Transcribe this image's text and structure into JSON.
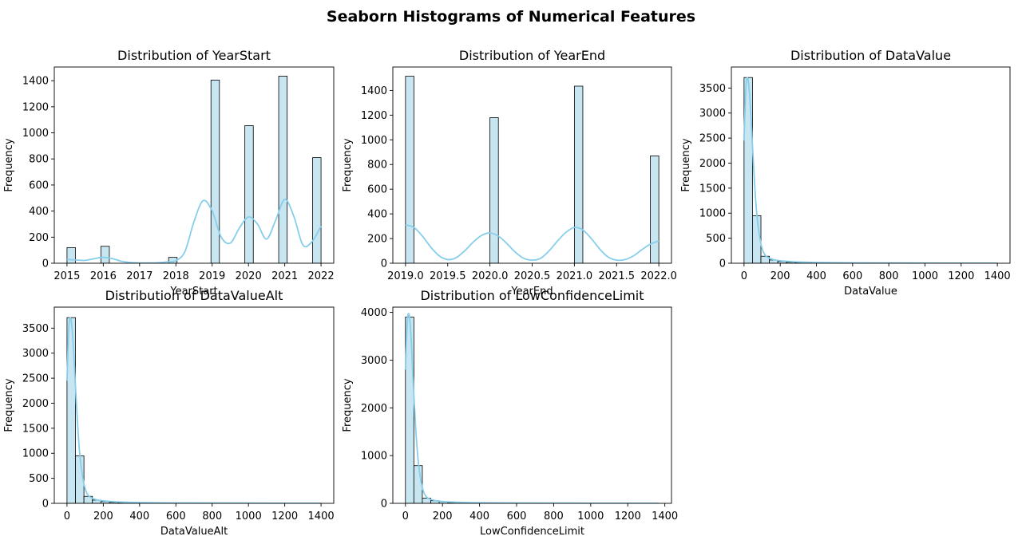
{
  "figure": {
    "title": "Seaborn Histograms of Numerical Features",
    "bar_fill": "#c7e6f1",
    "bar_edge": "#000000",
    "kde_color": "#87ceeb"
  },
  "chart_data": [
    {
      "type": "bar",
      "title": "Distribution of YearStart",
      "xlabel": "YearStart",
      "ylabel": "Frequency",
      "xlim": [
        2014.65,
        2022.35
      ],
      "ylim": [
        0,
        1505
      ],
      "xticks": [
        2015,
        2016,
        2017,
        2018,
        2019,
        2020,
        2021,
        2022
      ],
      "xtick_labels": [
        "2015",
        "2016",
        "2017",
        "2018",
        "2019",
        "2020",
        "2021",
        "2022"
      ],
      "yticks": [
        0,
        200,
        400,
        600,
        800,
        1000,
        1200,
        1400
      ],
      "ytick_labels": [
        "0",
        "200",
        "400",
        "600",
        "800",
        "1000",
        "1200",
        "1400"
      ],
      "bins": [
        {
          "x0": 2015.0,
          "x1": 2015.233,
          "v": 120
        },
        {
          "x0": 2015.933,
          "x1": 2016.167,
          "v": 130
        },
        {
          "x0": 2017.8,
          "x1": 2018.033,
          "v": 45
        },
        {
          "x0": 2018.967,
          "x1": 2019.2,
          "v": 1405
        },
        {
          "x0": 2019.9,
          "x1": 2020.133,
          "v": 1055
        },
        {
          "x0": 2020.833,
          "x1": 2021.067,
          "v": 1435
        },
        {
          "x0": 2021.767,
          "x1": 2022.0,
          "v": 810
        }
      ],
      "kde": {
        "x": [
          2015.0,
          2015.25,
          2015.5,
          2015.75,
          2016.0,
          2016.25,
          2016.5,
          2016.75,
          2017.0,
          2017.25,
          2017.5,
          2017.75,
          2018.0,
          2018.25,
          2018.5,
          2018.75,
          2019.0,
          2019.25,
          2019.5,
          2019.75,
          2020.0,
          2020.25,
          2020.5,
          2020.75,
          2021.0,
          2021.25,
          2021.5,
          2021.75,
          2022.0
        ],
        "y": [
          30,
          25,
          22,
          35,
          45,
          35,
          15,
          5,
          2,
          2,
          4,
          10,
          20,
          90,
          320,
          480,
          400,
          200,
          155,
          270,
          355,
          300,
          185,
          330,
          490,
          360,
          140,
          165,
          285
        ]
      }
    },
    {
      "type": "bar",
      "title": "Distribution of YearEnd",
      "xlabel": "YearEnd",
      "ylabel": "Frequency",
      "xlim": [
        2018.85,
        2022.15
      ],
      "ylim": [
        0,
        1590
      ],
      "xticks": [
        2019.0,
        2019.5,
        2020.0,
        2020.5,
        2021.0,
        2021.5,
        2022.0
      ],
      "xtick_labels": [
        "2019.0",
        "2019.5",
        "2020.0",
        "2020.5",
        "2021.0",
        "2021.5",
        "2022.0"
      ],
      "yticks": [
        0,
        200,
        400,
        600,
        800,
        1000,
        1200,
        1400
      ],
      "ytick_labels": [
        "0",
        "200",
        "400",
        "600",
        "800",
        "1000",
        "1200",
        "1400"
      ],
      "bins": [
        {
          "x0": 2019.0,
          "x1": 2019.1,
          "v": 1515
        },
        {
          "x0": 2020.0,
          "x1": 2020.1,
          "v": 1180
        },
        {
          "x0": 2021.0,
          "x1": 2021.1,
          "v": 1435
        },
        {
          "x0": 2021.9,
          "x1": 2022.0,
          "v": 870
        }
      ],
      "kde": {
        "x": [
          2019.0,
          2019.1,
          2019.2,
          2019.3,
          2019.4,
          2019.5,
          2019.6,
          2019.7,
          2019.8,
          2019.9,
          2020.0,
          2020.1,
          2020.2,
          2020.3,
          2020.4,
          2020.5,
          2020.6,
          2020.7,
          2020.8,
          2020.9,
          2021.0,
          2021.1,
          2021.2,
          2021.3,
          2021.4,
          2021.5,
          2021.6,
          2021.7,
          2021.8,
          2021.9,
          2022.0
        ],
        "y": [
          310,
          290,
          220,
          130,
          60,
          30,
          45,
          100,
          170,
          225,
          245,
          220,
          160,
          90,
          40,
          25,
          40,
          100,
          180,
          250,
          290,
          270,
          200,
          115,
          50,
          25,
          30,
          60,
          110,
          155,
          180
        ]
      }
    },
    {
      "type": "bar",
      "title": "Distribution of DataValue",
      "xlabel": "DataValue",
      "ylabel": "Frequency",
      "xlim": [
        -70,
        1470
      ],
      "ylim": [
        0,
        3920
      ],
      "xticks": [
        0,
        200,
        400,
        600,
        800,
        1000,
        1200,
        1400
      ],
      "xtick_labels": [
        "0",
        "200",
        "400",
        "600",
        "800",
        "1000",
        "1200",
        "1400"
      ],
      "yticks": [
        0,
        500,
        1000,
        1500,
        2000,
        2500,
        3000,
        3500
      ],
      "ytick_labels": [
        "0",
        "500",
        "1000",
        "1500",
        "2000",
        "2500",
        "3000",
        "3500"
      ],
      "bins": [
        {
          "x0": 0,
          "x1": 46.67,
          "v": 3710
        },
        {
          "x0": 46.67,
          "x1": 93.33,
          "v": 950
        },
        {
          "x0": 93.33,
          "x1": 140,
          "v": 140
        },
        {
          "x0": 140,
          "x1": 186.67,
          "v": 65
        },
        {
          "x0": 186.67,
          "x1": 233.33,
          "v": 35
        },
        {
          "x0": 233.33,
          "x1": 280,
          "v": 20
        },
        {
          "x0": 280,
          "x1": 326.67,
          "v": 12
        },
        {
          "x0": 326.67,
          "x1": 373.33,
          "v": 8
        },
        {
          "x0": 373.33,
          "x1": 420,
          "v": 6
        },
        {
          "x0": 420,
          "x1": 466.67,
          "v": 4
        },
        {
          "x0": 466.67,
          "x1": 513.33,
          "v": 3
        },
        {
          "x0": 513.33,
          "x1": 560,
          "v": 3
        },
        {
          "x0": 560,
          "x1": 606.67,
          "v": 2
        },
        {
          "x0": 606.67,
          "x1": 653.33,
          "v": 2
        }
      ],
      "kde": {
        "x": [
          0,
          10,
          20,
          30,
          40,
          55,
          70,
          90,
          110,
          140,
          180,
          230,
          300,
          400,
          600,
          800,
          1000,
          1200,
          1400
        ],
        "y": [
          2450,
          3500,
          3700,
          3400,
          2800,
          1800,
          1000,
          450,
          200,
          100,
          60,
          40,
          25,
          15,
          8,
          5,
          3,
          2,
          1
        ]
      }
    },
    {
      "type": "bar",
      "title": "Distribution of DataValueAlt",
      "xlabel": "DataValueAlt",
      "ylabel": "Frequency",
      "xlim": [
        -70,
        1470
      ],
      "ylim": [
        0,
        3920
      ],
      "xticks": [
        0,
        200,
        400,
        600,
        800,
        1000,
        1200,
        1400
      ],
      "xtick_labels": [
        "0",
        "200",
        "400",
        "600",
        "800",
        "1000",
        "1200",
        "1400"
      ],
      "yticks": [
        0,
        500,
        1000,
        1500,
        2000,
        2500,
        3000,
        3500
      ],
      "ytick_labels": [
        "0",
        "500",
        "1000",
        "1500",
        "2000",
        "2500",
        "3000",
        "3500"
      ],
      "bins": [
        {
          "x0": 0,
          "x1": 46.67,
          "v": 3710
        },
        {
          "x0": 46.67,
          "x1": 93.33,
          "v": 950
        },
        {
          "x0": 93.33,
          "x1": 140,
          "v": 140
        },
        {
          "x0": 140,
          "x1": 186.67,
          "v": 65
        },
        {
          "x0": 186.67,
          "x1": 233.33,
          "v": 35
        },
        {
          "x0": 233.33,
          "x1": 280,
          "v": 20
        },
        {
          "x0": 280,
          "x1": 326.67,
          "v": 12
        },
        {
          "x0": 326.67,
          "x1": 373.33,
          "v": 8
        },
        {
          "x0": 373.33,
          "x1": 420,
          "v": 6
        },
        {
          "x0": 420,
          "x1": 466.67,
          "v": 4
        },
        {
          "x0": 466.67,
          "x1": 513.33,
          "v": 3
        },
        {
          "x0": 513.33,
          "x1": 560,
          "v": 3
        },
        {
          "x0": 560,
          "x1": 606.67,
          "v": 2
        },
        {
          "x0": 606.67,
          "x1": 653.33,
          "v": 2
        }
      ],
      "kde": {
        "x": [
          0,
          10,
          20,
          30,
          40,
          55,
          70,
          90,
          110,
          140,
          180,
          230,
          300,
          400,
          600,
          800,
          1000,
          1200,
          1400
        ],
        "y": [
          2450,
          3500,
          3700,
          3400,
          2800,
          1800,
          1000,
          450,
          200,
          100,
          60,
          40,
          25,
          15,
          8,
          5,
          3,
          2,
          1
        ]
      }
    },
    {
      "type": "bar",
      "title": "Distribution of LowConfidenceLimit",
      "xlabel": "LowConfidenceLimit",
      "ylabel": "Frequency",
      "xlim": [
        -68,
        1436
      ],
      "ylim": [
        0,
        4110
      ],
      "xticks": [
        0,
        200,
        400,
        600,
        800,
        1000,
        1200,
        1400
      ],
      "xtick_labels": [
        "0",
        "200",
        "400",
        "600",
        "800",
        "1000",
        "1200",
        "1400"
      ],
      "yticks": [
        0,
        1000,
        2000,
        3000,
        4000
      ],
      "ytick_labels": [
        "0",
        "1000",
        "2000",
        "3000",
        "4000"
      ],
      "bins": [
        {
          "x0": 0,
          "x1": 45.6,
          "v": 3900
        },
        {
          "x0": 45.6,
          "x1": 91.2,
          "v": 790
        },
        {
          "x0": 91.2,
          "x1": 136.8,
          "v": 110
        },
        {
          "x0": 136.8,
          "x1": 182.4,
          "v": 55
        },
        {
          "x0": 182.4,
          "x1": 228,
          "v": 30
        },
        {
          "x0": 228,
          "x1": 273.6,
          "v": 15
        },
        {
          "x0": 273.6,
          "x1": 319.2,
          "v": 10
        },
        {
          "x0": 319.2,
          "x1": 364.8,
          "v": 6
        },
        {
          "x0": 364.8,
          "x1": 410.4,
          "v": 4
        },
        {
          "x0": 410.4,
          "x1": 456,
          "v": 3
        },
        {
          "x0": 456,
          "x1": 501.6,
          "v": 2
        },
        {
          "x0": 501.6,
          "x1": 547.2,
          "v": 2
        }
      ],
      "kde": {
        "x": [
          0,
          10,
          20,
          30,
          40,
          55,
          70,
          90,
          110,
          140,
          180,
          230,
          300,
          400,
          600,
          800,
          1000,
          1200,
          1368
        ],
        "y": [
          2800,
          3800,
          3950,
          3500,
          2700,
          1600,
          850,
          350,
          150,
          80,
          45,
          30,
          20,
          12,
          6,
          4,
          2,
          1,
          1
        ]
      }
    }
  ]
}
